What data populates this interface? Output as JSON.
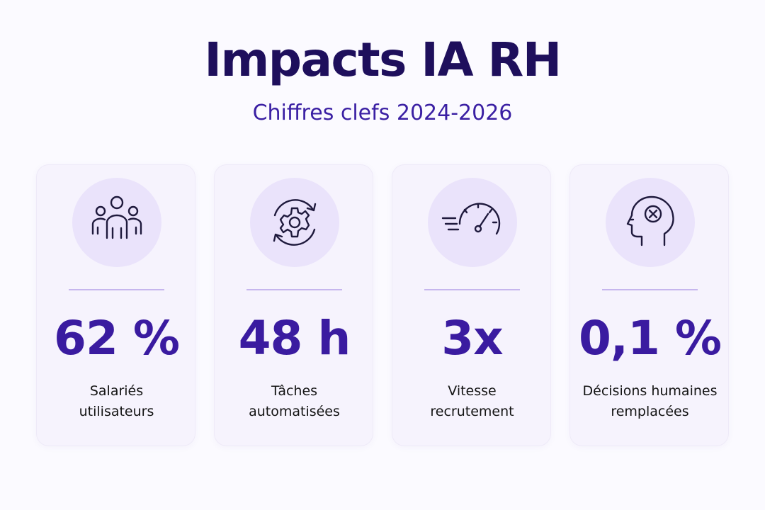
{
  "header": {
    "title": "Impacts IA RH",
    "subtitle": "Chiffres clefs 2024-2026"
  },
  "colors": {
    "title": "#1e0f5c",
    "accent": "#3a1ba0",
    "card_bg": "#f6f3fd",
    "icon_bg": "#eae3fb",
    "icon_stroke": "#1f1a3d"
  },
  "cards": [
    {
      "icon": "people-group-icon",
      "value": "62 %",
      "label_line1": "Salariés",
      "label_line2": "utilisateurs"
    },
    {
      "icon": "gear-cycle-icon",
      "value": "48 h",
      "label_line1": "Tâches",
      "label_line2": "automatisées"
    },
    {
      "icon": "speedometer-icon",
      "value": "3x",
      "label_line1": "Vitesse",
      "label_line2": "recrutement"
    },
    {
      "icon": "head-cross-icon",
      "value": "0,1 %",
      "label_line1": "Décisions humaines",
      "label_line2": "remplacées"
    }
  ]
}
